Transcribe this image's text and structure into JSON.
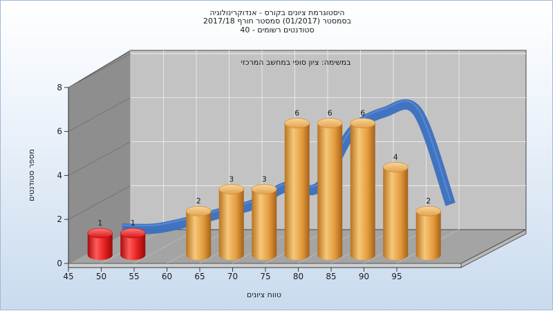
{
  "chart_data": {
    "type": "bar",
    "title_lines": [
      "היסטוגרמת ציונים בקורס - אנדוקרינולוגיה",
      "בסמסטר  (01/2017)  סמסטר חורף 2017/18",
      "סטודנטים רשומים - 40"
    ],
    "subtitle": "במשימה: ציון סופי במחשב המרכזי",
    "xlabel": "טווח ציונים",
    "ylabel": "מספר סטודנטים",
    "categories": [
      "45",
      "50",
      "55",
      "60",
      "65",
      "70",
      "75",
      "80",
      "85",
      "90",
      "95"
    ],
    "ylim": [
      0,
      8
    ],
    "yticks": [
      "0",
      "2",
      "4",
      "6",
      "8"
    ],
    "bars": [
      {
        "x": 47.5,
        "value": 1,
        "label": "1",
        "color": "#e02020"
      },
      {
        "x": 52.5,
        "value": 1,
        "label": "1",
        "color": "#e02020"
      },
      {
        "x": 62.5,
        "value": 2,
        "label": "2",
        "color": "#e8a040"
      },
      {
        "x": 67.5,
        "value": 3,
        "label": "3",
        "color": "#e8a040"
      },
      {
        "x": 72.5,
        "value": 3,
        "label": "3",
        "color": "#e8a040"
      },
      {
        "x": 77.5,
        "value": 6,
        "label": "6",
        "color": "#e8a040"
      },
      {
        "x": 82.5,
        "value": 6,
        "label": "6",
        "color": "#e8a040"
      },
      {
        "x": 87.5,
        "value": 6,
        "label": "6",
        "color": "#e8a040"
      },
      {
        "x": 92.5,
        "value": 4,
        "label": "4",
        "color": "#e8a040"
      },
      {
        "x": 97.5,
        "value": 2,
        "label": "2",
        "color": "#e8a040"
      }
    ],
    "trend": {
      "x": [
        47.5,
        52.5,
        57.5,
        62.5,
        67.5,
        72.5,
        77.5,
        82.5,
        87.5,
        92.5,
        97.5
      ],
      "values": [
        0.6,
        0.6,
        0.9,
        1.3,
        1.7,
        2.5,
        2.5,
        5.0,
        5.9,
        5.9,
        1.7
      ],
      "color": "#3a70c0"
    },
    "grid": true,
    "legend": "none"
  }
}
